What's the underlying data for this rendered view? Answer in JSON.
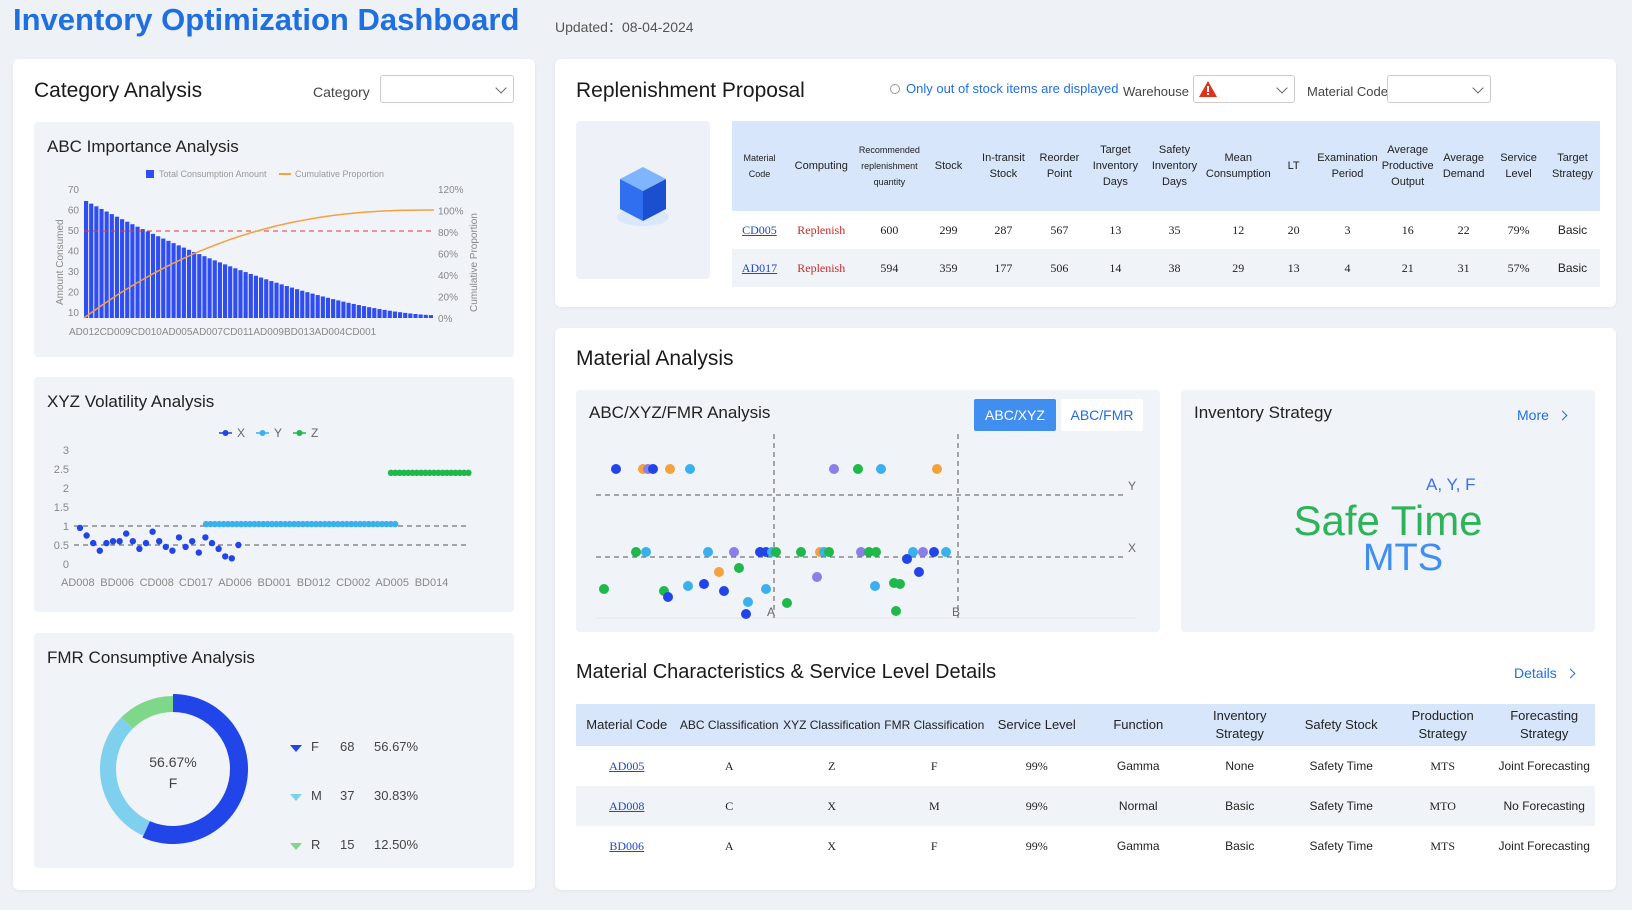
{
  "header": {
    "title": "Inventory Optimization Dashboard",
    "updated_label": "Updated：",
    "updated_date": "08-04-2024"
  },
  "category_analysis": {
    "title": "Category Analysis",
    "filter_label": "Category",
    "filter_value": ""
  },
  "abc_chart": {
    "title": "ABC Importance Analysis",
    "legend_bar": "Total Consumption Amount",
    "legend_line": "Cumulative Proportion",
    "y_left_label": "Amount Consumed",
    "y_right_label": "Cumulative Proportion",
    "y_left_ticks": [
      "70",
      "60",
      "50",
      "40",
      "30",
      "20",
      "10"
    ],
    "y_right_ticks": [
      "120%",
      "100%",
      "80%",
      "60%",
      "40%",
      "20%",
      "0%"
    ],
    "x_labels": "AD012CD009CD010AD005AD007CD011AD009BD013AD004CD001"
  },
  "xyz_chart": {
    "title": "XYZ Volatility Analysis",
    "legend": [
      "X",
      "Y",
      "Z"
    ],
    "y_ticks": [
      "3",
      "2.5",
      "2",
      "1.5",
      "1",
      "0.5",
      "0"
    ],
    "x_labels": [
      "AD008",
      "BD006",
      "CD008",
      "CD017",
      "AD006",
      "BD001",
      "BD012",
      "CD002",
      "AD005",
      "BD014"
    ]
  },
  "fmr_chart": {
    "title": "FMR Consumptive Analysis",
    "center_value": "56.67%",
    "center_label": "F",
    "legend": [
      {
        "name": "F",
        "count": "68",
        "pct": "56.67%"
      },
      {
        "name": "M",
        "count": "37",
        "pct": "30.83%"
      },
      {
        "name": "R",
        "count": "15",
        "pct": "12.50%"
      }
    ]
  },
  "replenishment": {
    "title": "Replenishment Proposal",
    "radio_label": "Only out of stock items are displayed",
    "warehouse_label": "Warehouse",
    "material_code_label": "Material Code",
    "columns": [
      "Material Code",
      "Computing",
      "Recommended replenishment quantity",
      "Stock",
      "In-transit Stock",
      "Reorder Point",
      "Target Inventory Days",
      "Safety Inventory Days",
      "Mean Consumption",
      "LT",
      "Examination Period",
      "Average Productive Output",
      "Average Demand",
      "Service Level",
      "Target Strategy"
    ],
    "rows": [
      [
        "CD005",
        "Replenish",
        "600",
        "299",
        "287",
        "567",
        "13",
        "35",
        "12",
        "20",
        "3",
        "16",
        "22",
        "79%",
        "Basic"
      ],
      [
        "AD017",
        "Replenish",
        "594",
        "359",
        "177",
        "506",
        "14",
        "38",
        "29",
        "13",
        "4",
        "21",
        "31",
        "57%",
        "Basic"
      ]
    ]
  },
  "material_analysis": {
    "title": "Material Analysis",
    "matrix_title": "ABC/XYZ/FMR Analysis",
    "tab_active": "ABC/XYZ",
    "tab_inactive": "ABC/FMR",
    "axis_labels": {
      "y": "Y",
      "x": "X",
      "a": "A",
      "b": "B"
    }
  },
  "strategy": {
    "title": "Inventory Strategy",
    "more_label": "More",
    "class_tag": "A, Y, F",
    "strategy_main": "Safe Time",
    "strategy_sub": "MTS"
  },
  "details": {
    "title": "Material Characteristics & Service Level Details",
    "details_label": "Details",
    "columns": [
      "Material Code",
      "ABC Classification",
      "XYZ Classification",
      "FMR Classification",
      "Service Level",
      "Function",
      "Inventory Strategy",
      "Safety Stock",
      "Production Strategy",
      "Forecasting Strategy"
    ],
    "rows": [
      [
        "AD005",
        "A",
        "Z",
        "F",
        "99%",
        "Gamma",
        "None",
        "Safety Time",
        "MTS",
        "Joint Forecasting"
      ],
      [
        "AD008",
        "C",
        "X",
        "M",
        "99%",
        "Normal",
        "Basic",
        "Safety Time",
        "MTO",
        "No Forecasting"
      ],
      [
        "BD006",
        "A",
        "X",
        "F",
        "99%",
        "Gamma",
        "Basic",
        "Safety Time",
        "MTS",
        "Joint Forecasting"
      ]
    ]
  },
  "colors": {
    "accent": "#1f6fe0",
    "bar": "#2f4df0",
    "line": "#f5a13c",
    "x": "#2145e8",
    "y": "#3ab0ee",
    "z": "#1fb84a",
    "f": "#2145e8",
    "m": "#7fd0ee",
    "r": "#7fd88a",
    "strategy_green": "#2db35a",
    "strategy_blue": "#3f8ef0"
  }
}
